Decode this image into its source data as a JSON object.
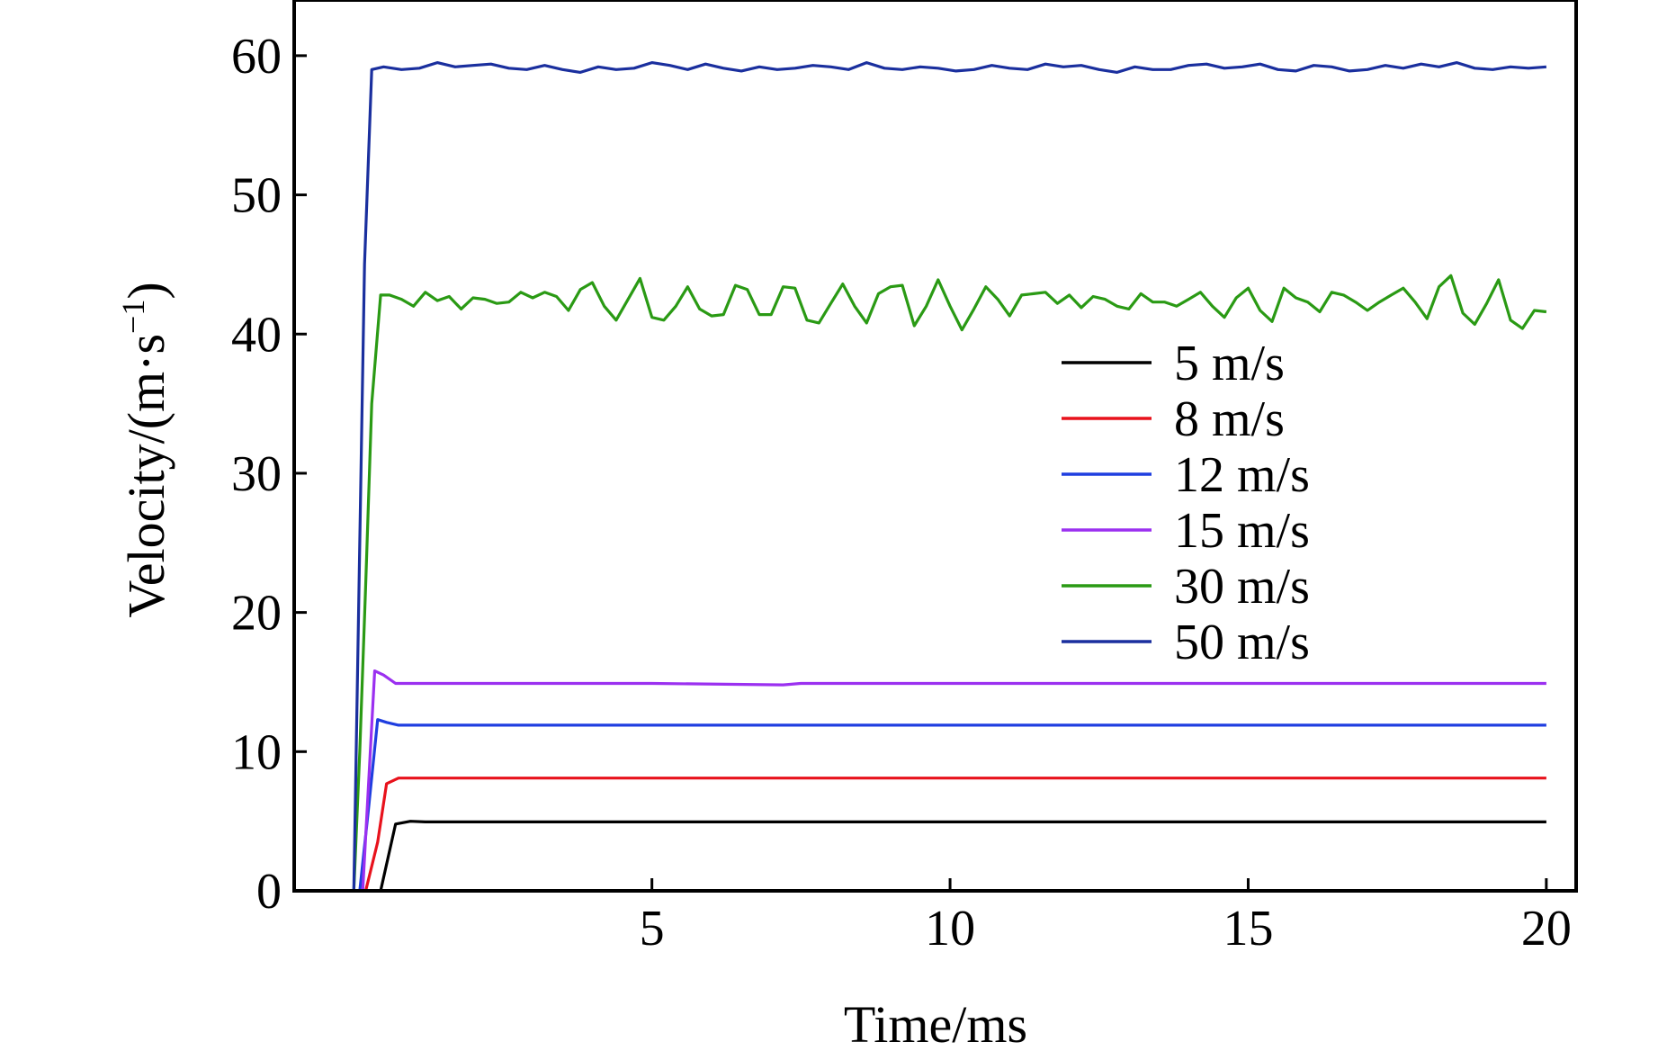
{
  "chart_data": {
    "type": "line",
    "title": "",
    "xlabel": "Time/ms",
    "ylabel": "Velocity/(m·s",
    "ylabel_sup": "−1",
    "ylabel_close": ")",
    "xlim": [
      -1,
      20.5
    ],
    "ylim": [
      0,
      64
    ],
    "xticks": [
      5,
      10,
      15,
      20
    ],
    "yticks": [
      0,
      10,
      20,
      30,
      40,
      50,
      60
    ],
    "grid": false,
    "legend_position": "center-right",
    "series": [
      {
        "name": "5 m/s",
        "color": "#000000",
        "x": [
          0.0,
          0.2,
          0.45,
          0.7,
          0.95,
          1.2,
          2,
          4,
          6,
          8,
          10,
          12,
          14,
          16,
          18,
          20
        ],
        "y": [
          0.0,
          0.0,
          0.0,
          4.8,
          5.0,
          4.95,
          4.95,
          4.95,
          4.95,
          4.95,
          4.95,
          4.95,
          4.95,
          4.95,
          4.95,
          4.95
        ]
      },
      {
        "name": "8 m/s",
        "color": "#e8121c",
        "x": [
          0.0,
          0.2,
          0.4,
          0.55,
          0.75,
          1.0,
          2,
          4,
          6,
          8,
          10,
          12,
          14,
          16,
          18,
          20
        ],
        "y": [
          0.0,
          0.0,
          3.5,
          7.7,
          8.1,
          8.1,
          8.1,
          8.1,
          8.1,
          8.1,
          8.1,
          8.1,
          8.1,
          8.1,
          8.1,
          8.1
        ]
      },
      {
        "name": "12 m/s",
        "color": "#1f3ee0",
        "x": [
          0.0,
          0.1,
          0.25,
          0.4,
          0.55,
          0.75,
          1.0,
          2,
          4,
          6,
          8,
          10,
          12,
          14,
          16,
          18,
          20
        ],
        "y": [
          0.0,
          0.0,
          6.0,
          12.3,
          12.1,
          11.9,
          11.9,
          11.9,
          11.9,
          11.9,
          11.9,
          11.9,
          11.9,
          11.9,
          11.9,
          11.9,
          11.9
        ]
      },
      {
        "name": "15 m/s",
        "color": "#9b30f0",
        "x": [
          0.0,
          0.15,
          0.35,
          0.5,
          0.7,
          1.0,
          3,
          5,
          7.2,
          7.5,
          9,
          12,
          15,
          18,
          20
        ],
        "y": [
          0.0,
          0.0,
          15.8,
          15.5,
          14.9,
          14.9,
          14.9,
          14.9,
          14.8,
          14.9,
          14.9,
          14.9,
          14.9,
          14.9,
          14.9
        ]
      },
      {
        "name": "30 m/s",
        "color": "#2a9a14",
        "x": [
          0.0,
          0.1,
          0.2,
          0.3,
          0.45,
          0.6,
          0.8,
          1.0,
          1.2,
          1.4,
          1.6,
          1.8,
          2.0,
          2.2,
          2.4,
          2.6,
          2.8,
          3.0,
          3.2,
          3.4,
          3.6,
          3.8,
          4.0,
          4.2,
          4.4,
          4.6,
          4.8,
          5.0,
          5.2,
          5.4,
          5.6,
          5.8,
          6.0,
          6.2,
          6.4,
          6.6,
          6.8,
          7.0,
          7.2,
          7.4,
          7.6,
          7.8,
          8.0,
          8.2,
          8.4,
          8.6,
          8.8,
          9.0,
          9.2,
          9.4,
          9.6,
          9.8,
          10.0,
          10.2,
          10.4,
          10.6,
          10.8,
          11.0,
          11.2,
          11.4,
          11.6,
          11.8,
          12.0,
          12.2,
          12.4,
          12.6,
          12.8,
          13.0,
          13.2,
          13.4,
          13.6,
          13.8,
          14.0,
          14.2,
          14.4,
          14.6,
          14.8,
          15.0,
          15.2,
          15.4,
          15.6,
          15.8,
          16.0,
          16.2,
          16.4,
          16.6,
          16.8,
          17.0,
          17.2,
          17.4,
          17.6,
          17.8,
          18.0,
          18.2,
          18.4,
          18.6,
          18.8,
          19.0,
          19.2,
          19.4,
          19.6,
          19.8,
          20.0
        ],
        "y": [
          0.0,
          10.0,
          22.0,
          35.0,
          42.8,
          42.8,
          42.5,
          42.0,
          43.0,
          42.4,
          42.7,
          41.8,
          42.6,
          42.5,
          42.2,
          42.3,
          43.0,
          42.6,
          43.0,
          42.7,
          41.7,
          43.2,
          43.7,
          42.0,
          41.0,
          42.5,
          44.0,
          41.2,
          41.0,
          42.0,
          43.4,
          41.8,
          41.3,
          41.4,
          43.5,
          43.2,
          41.4,
          41.4,
          43.4,
          43.3,
          41.0,
          40.8,
          42.2,
          43.6,
          42.0,
          40.8,
          42.9,
          43.4,
          43.5,
          40.6,
          42.0,
          43.9,
          42.0,
          40.3,
          41.8,
          43.4,
          42.5,
          41.3,
          42.8,
          42.9,
          43.0,
          42.2,
          42.8,
          41.9,
          42.7,
          42.5,
          42.0,
          41.8,
          42.9,
          42.3,
          42.3,
          42.0,
          42.5,
          43.0,
          42.0,
          41.2,
          42.6,
          43.3,
          41.7,
          40.9,
          43.3,
          42.6,
          42.3,
          41.6,
          43.0,
          42.8,
          42.3,
          41.7,
          42.3,
          42.8,
          43.3,
          42.3,
          41.1,
          43.4,
          44.2,
          41.5,
          40.7,
          42.2,
          43.9,
          41.0,
          40.4,
          41.7,
          41.6
        ]
      },
      {
        "name": "50 m/s",
        "color": "#1a2f9e",
        "x": [
          0.0,
          0.1,
          0.18,
          0.3,
          0.5,
          0.8,
          1.1,
          1.4,
          1.7,
          2.0,
          2.3,
          2.6,
          2.9,
          3.2,
          3.5,
          3.8,
          4.1,
          4.4,
          4.7,
          5.0,
          5.3,
          5.6,
          5.9,
          6.2,
          6.5,
          6.8,
          7.1,
          7.4,
          7.7,
          8.0,
          8.3,
          8.6,
          8.9,
          9.2,
          9.5,
          9.8,
          10.1,
          10.4,
          10.7,
          11.0,
          11.3,
          11.6,
          11.9,
          12.2,
          12.5,
          12.8,
          13.1,
          13.4,
          13.7,
          14.0,
          14.3,
          14.6,
          14.9,
          15.2,
          15.5,
          15.8,
          16.1,
          16.4,
          16.7,
          17.0,
          17.3,
          17.6,
          17.9,
          18.2,
          18.5,
          18.8,
          19.1,
          19.4,
          19.7,
          20.0
        ],
        "y": [
          0.0,
          25.0,
          45.0,
          59.0,
          59.2,
          59.0,
          59.1,
          59.5,
          59.2,
          59.3,
          59.4,
          59.1,
          59.0,
          59.3,
          59.0,
          58.8,
          59.2,
          59.0,
          59.1,
          59.5,
          59.3,
          59.0,
          59.4,
          59.1,
          58.9,
          59.2,
          59.0,
          59.1,
          59.3,
          59.2,
          59.0,
          59.5,
          59.1,
          59.0,
          59.2,
          59.1,
          58.9,
          59.0,
          59.3,
          59.1,
          59.0,
          59.4,
          59.2,
          59.3,
          59.0,
          58.8,
          59.2,
          59.0,
          59.0,
          59.3,
          59.4,
          59.1,
          59.2,
          59.4,
          59.0,
          58.9,
          59.3,
          59.2,
          58.9,
          59.0,
          59.3,
          59.1,
          59.4,
          59.2,
          59.5,
          59.1,
          59.0,
          59.2,
          59.1,
          59.2
        ]
      }
    ]
  }
}
